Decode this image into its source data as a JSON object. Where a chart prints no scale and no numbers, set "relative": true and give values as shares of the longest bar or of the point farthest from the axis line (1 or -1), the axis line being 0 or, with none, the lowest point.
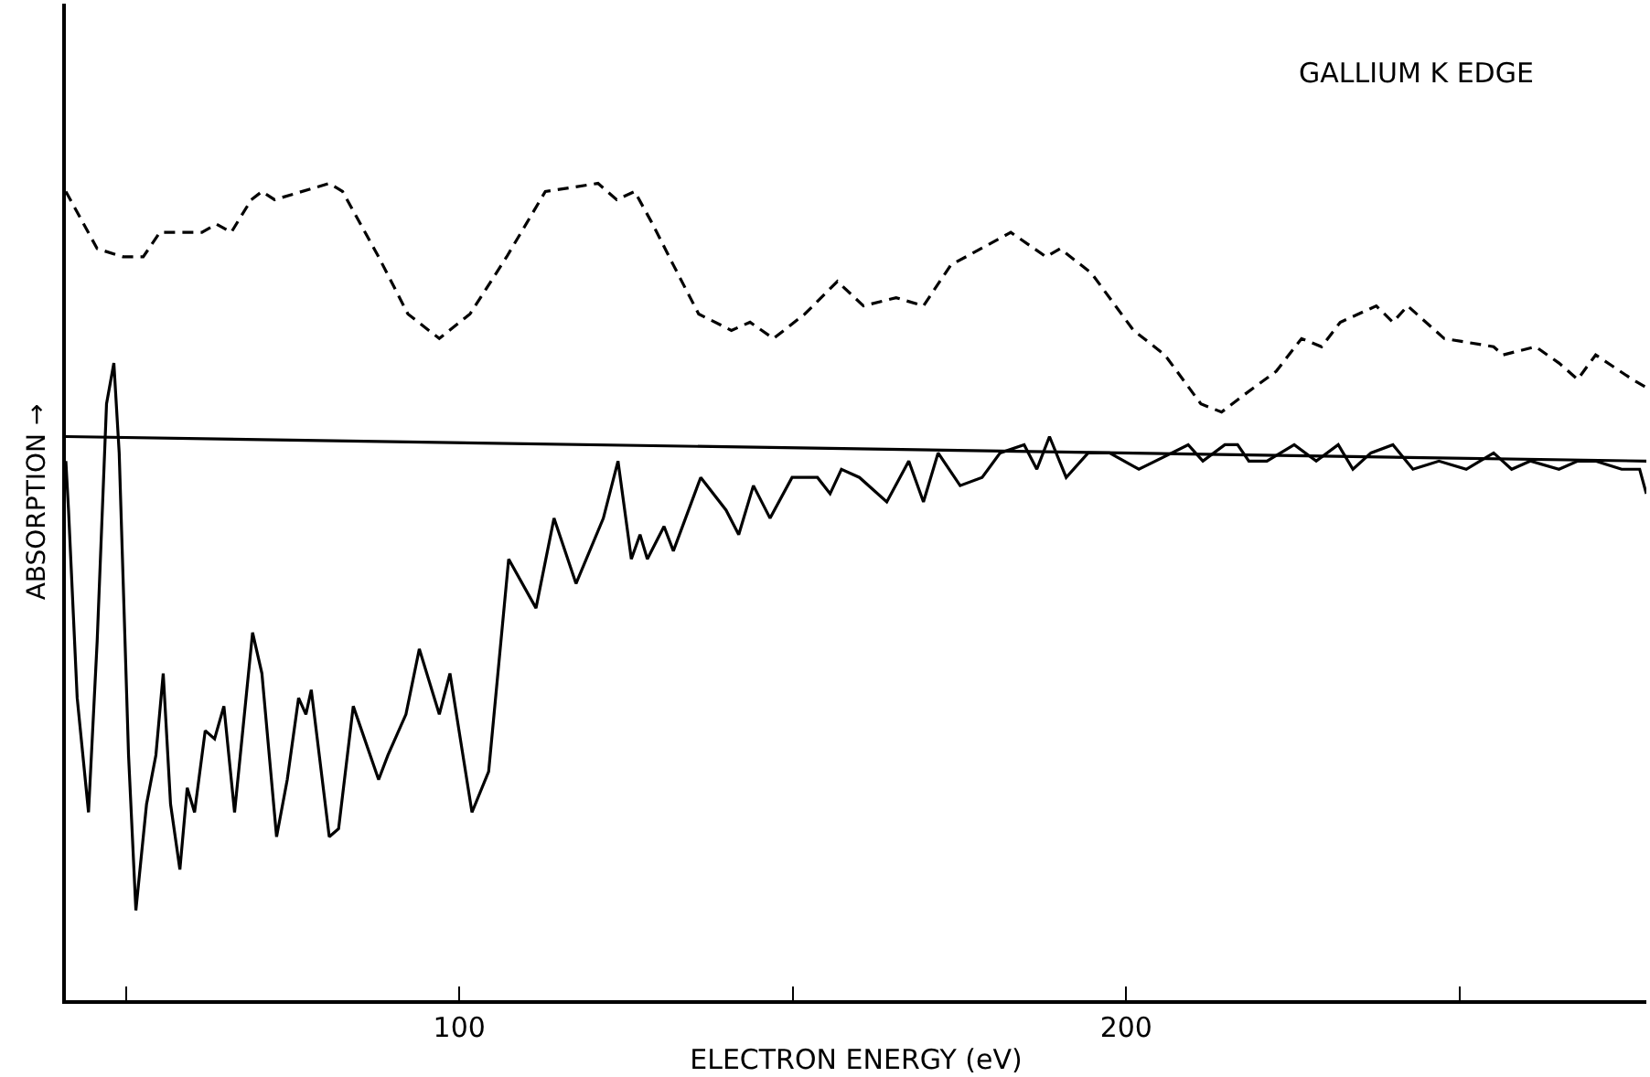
{
  "chart_data": {
    "type": "line",
    "relative": true,
    "xlabel": "ELECTRON ENERGY (eV)",
    "ylabel": "ABSORPTION →",
    "annotations": [
      "GALLIUM K EDGE"
    ],
    "xlim": [
      41,
      278
    ],
    "xticks": [
      {
        "value": 50,
        "label": null
      },
      100,
      {
        "value": 150,
        "label": null
      },
      200,
      {
        "value": 250,
        "label": null
      }
    ],
    "tick_labels": "x",
    "series": [
      {
        "color": "#000000",
        "line_style": "dashed",
        "x": [
          41,
          45.7,
          49.6,
          52.6,
          55.1,
          61.4,
          63.6,
          65.8,
          68.8,
          70.4,
          72.3,
          80.5,
          82.5,
          87.9,
          92.3,
          97.0,
          101.6,
          107.1,
          112.9,
          120.8,
          123.6,
          126.3,
          129.0,
          132.1,
          135.9,
          140.8,
          143.6,
          147.1,
          151.8,
          156.7,
          160.6,
          165.5,
          169.6,
          173.7,
          182.7,
          188.0,
          190.1,
          194.8,
          201.1,
          205.8,
          211.2,
          214.3,
          217.5,
          222.5,
          226.3,
          229.3,
          232.1,
          237.5,
          240.0,
          242.2,
          247.7,
          255.1,
          256.5,
          261.4,
          264.9,
          267.7,
          270.4,
          275.9,
          278
        ],
        "values": [
          0.99,
          0.92,
          0.91,
          0.91,
          0.94,
          0.94,
          0.95,
          0.94,
          0.98,
          0.99,
          0.98,
          1.0,
          0.99,
          0.91,
          0.84,
          0.81,
          0.84,
          0.91,
          0.99,
          1.0,
          0.98,
          0.99,
          0.95,
          0.9,
          0.84,
          0.82,
          0.83,
          0.81,
          0.84,
          0.88,
          0.85,
          0.86,
          0.85,
          0.9,
          0.94,
          0.91,
          0.92,
          0.89,
          0.82,
          0.79,
          0.73,
          0.72,
          0.74,
          0.77,
          0.81,
          0.8,
          0.83,
          0.85,
          0.83,
          0.85,
          0.81,
          0.8,
          0.79,
          0.8,
          0.78,
          0.76,
          0.79,
          0.76,
          0.75
        ]
      },
      {
        "color": "#000000",
        "line_style": "solid",
        "x": [
          41,
          41.4,
          42.7,
          44.4,
          45.7,
          47.1,
          48.2,
          49.0,
          50.4,
          51.5,
          53.1,
          54.5,
          55.6,
          56.7,
          58.1,
          59.2,
          60.3,
          61.9,
          63.3,
          64.7,
          66.3,
          69.0,
          70.4,
          72.6,
          74.2,
          75.9,
          77.0,
          77.8,
          80.5,
          81.9,
          84.1,
          87.9,
          89.3,
          92.0,
          94.0,
          97.0,
          98.6,
          101.9,
          104.4,
          107.4,
          111.5,
          114.2,
          117.5,
          121.6,
          123.8,
          125.8,
          127.1,
          128.2,
          130.7,
          132.1,
          136.2,
          140.0,
          141.9,
          144.1,
          146.6,
          149.9,
          153.7,
          155.6,
          157.3,
          160.0,
          164.1,
          167.4,
          169.6,
          171.8,
          175.1,
          178.4,
          181.1,
          184.7,
          186.6,
          188.5,
          191.0,
          194.3,
          197.5,
          201.9,
          209.3,
          211.5,
          214.8,
          216.7,
          218.4,
          221.1,
          225.2,
          228.5,
          231.8,
          234.0,
          236.7,
          240.0,
          243.0,
          246.9,
          251.0,
          255.1,
          257.8,
          260.6,
          264.9,
          267.7,
          270.4,
          274.3,
          277.0,
          278
        ],
        "values": [
          0.66,
          0.6,
          0.37,
          0.23,
          0.44,
          0.73,
          0.78,
          0.67,
          0.3,
          0.11,
          0.24,
          0.3,
          0.4,
          0.24,
          0.16,
          0.26,
          0.23,
          0.33,
          0.32,
          0.36,
          0.23,
          0.45,
          0.4,
          0.2,
          0.27,
          0.37,
          0.35,
          0.38,
          0.2,
          0.21,
          0.36,
          0.27,
          0.3,
          0.35,
          0.43,
          0.35,
          0.4,
          0.23,
          0.28,
          0.54,
          0.48,
          0.59,
          0.51,
          0.59,
          0.66,
          0.54,
          0.57,
          0.54,
          0.58,
          0.55,
          0.64,
          0.6,
          0.57,
          0.63,
          0.59,
          0.64,
          0.64,
          0.62,
          0.65,
          0.64,
          0.61,
          0.66,
          0.61,
          0.67,
          0.63,
          0.64,
          0.67,
          0.68,
          0.65,
          0.69,
          0.64,
          0.67,
          0.67,
          0.65,
          0.68,
          0.66,
          0.68,
          0.68,
          0.66,
          0.66,
          0.68,
          0.66,
          0.68,
          0.65,
          0.67,
          0.68,
          0.65,
          0.66,
          0.65,
          0.67,
          0.65,
          0.66,
          0.65,
          0.66,
          0.66,
          0.65,
          0.65,
          0.62
        ]
      },
      {
        "color": "#000000",
        "line_style": "solid",
        "x": [
          41,
          278
        ],
        "values": [
          0.69,
          0.66
        ]
      }
    ]
  }
}
